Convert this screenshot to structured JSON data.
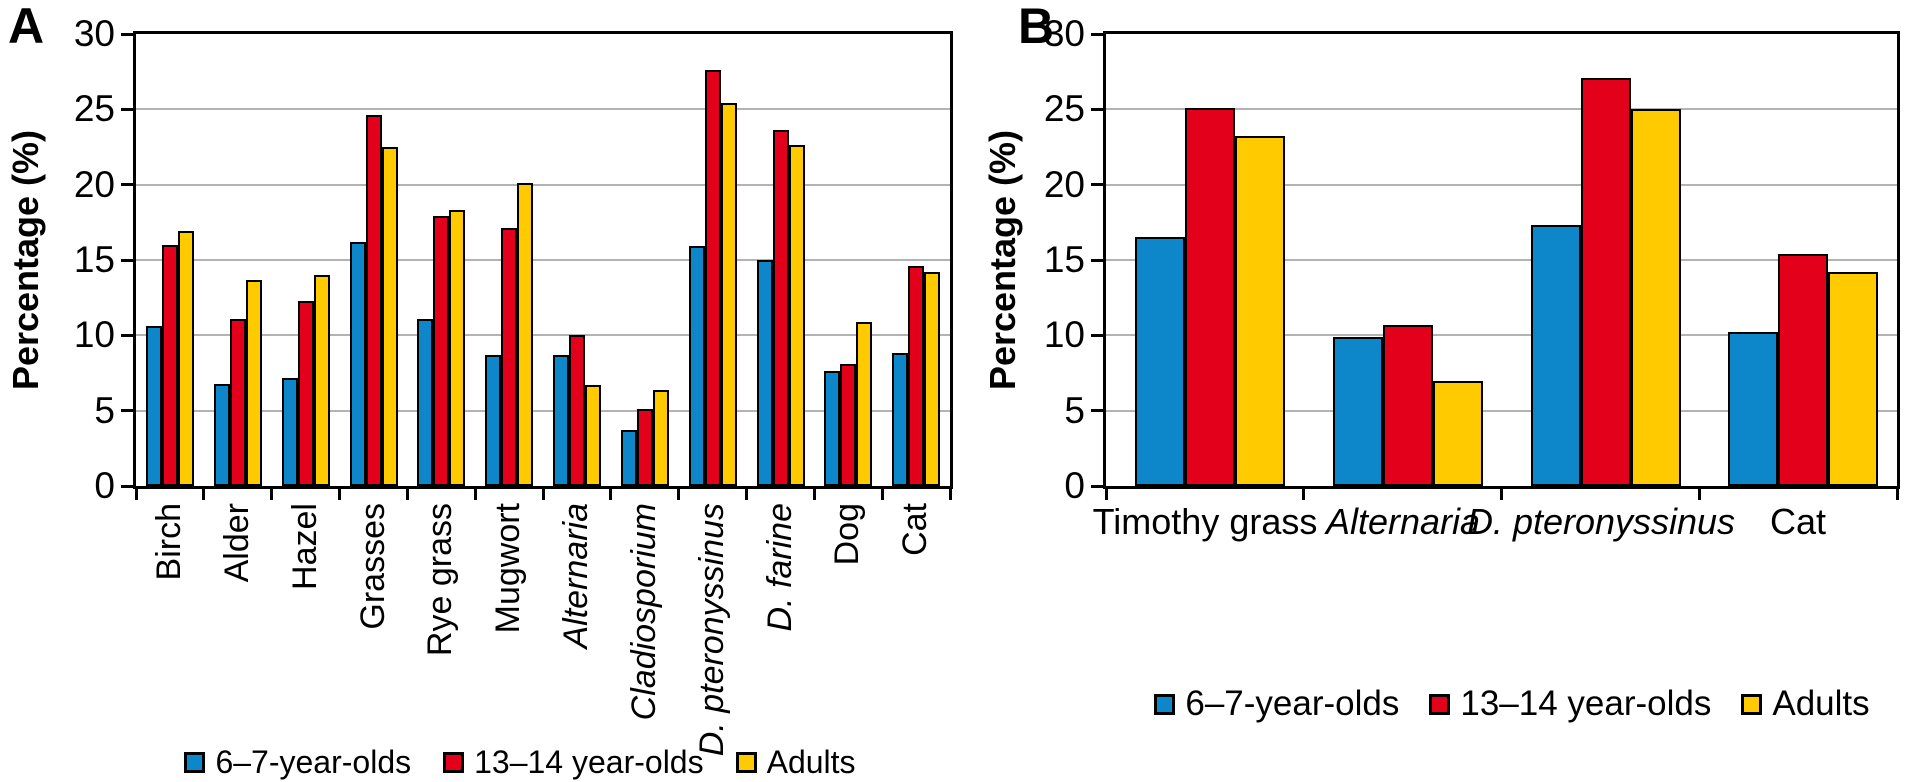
{
  "figure": {
    "background": "#ffffff",
    "outline_color": "#000000",
    "gridline_color": "#b3b3b3"
  },
  "chart_data": [
    {
      "type": "bar",
      "panel_label": "A",
      "ylabel": "Percentage (%)",
      "xlabel": "",
      "ylim": [
        0,
        30
      ],
      "yticks": [
        0,
        5,
        10,
        15,
        20,
        25,
        30
      ],
      "grid": true,
      "legend_position": "bottom",
      "xlabel_rotation": -90,
      "categories": [
        "Birch",
        "Alder",
        "Hazel",
        "Grasses",
        "Rye grass",
        "Mugwort",
        "Alternaria",
        "Cladiosporium",
        "D. pteronyssinus",
        "D. farine",
        "Dog",
        "Cat"
      ],
      "italic_categories": [
        "Alternaria",
        "Cladiosporium",
        "D. pteronyssinus",
        "D. farine"
      ],
      "series": [
        {
          "name": "6–7-year-olds",
          "color": "#0d87c9",
          "values": [
            10.6,
            6.8,
            7.2,
            16.2,
            11.1,
            8.7,
            8.7,
            3.7,
            15.9,
            15.0,
            7.6,
            8.8
          ]
        },
        {
          "name": "13–14 year-olds",
          "color": "#e2001a",
          "values": [
            16.0,
            11.1,
            12.3,
            24.6,
            17.9,
            17.1,
            10.0,
            5.1,
            27.6,
            23.6,
            8.1,
            14.6
          ]
        },
        {
          "name": "Adults",
          "color": "#ffcb00",
          "values": [
            16.9,
            13.7,
            14.0,
            22.5,
            18.3,
            20.1,
            6.7,
            6.4,
            25.4,
            22.6,
            10.9,
            14.2
          ]
        }
      ]
    },
    {
      "type": "bar",
      "panel_label": "B",
      "ylabel": "Percentage (%)",
      "xlabel": "",
      "ylim": [
        0,
        30
      ],
      "yticks": [
        0,
        5,
        10,
        15,
        20,
        25,
        30
      ],
      "grid": true,
      "legend_position": "bottom",
      "xlabel_rotation": 0,
      "categories": [
        "Timothy grass",
        "Alternaria",
        "D. pteronyssinus",
        "Cat"
      ],
      "italic_categories": [
        "Alternaria",
        "D. pteronyssinus"
      ],
      "series": [
        {
          "name": "6–7-year-olds",
          "color": "#0d87c9",
          "values": [
            16.5,
            9.9,
            17.3,
            10.2
          ]
        },
        {
          "name": "13–14 year-olds",
          "color": "#e2001a",
          "values": [
            25.1,
            10.7,
            27.1,
            15.4
          ]
        },
        {
          "name": "Adults",
          "color": "#ffcb00",
          "values": [
            23.2,
            7.0,
            25.0,
            14.2
          ]
        }
      ]
    }
  ]
}
